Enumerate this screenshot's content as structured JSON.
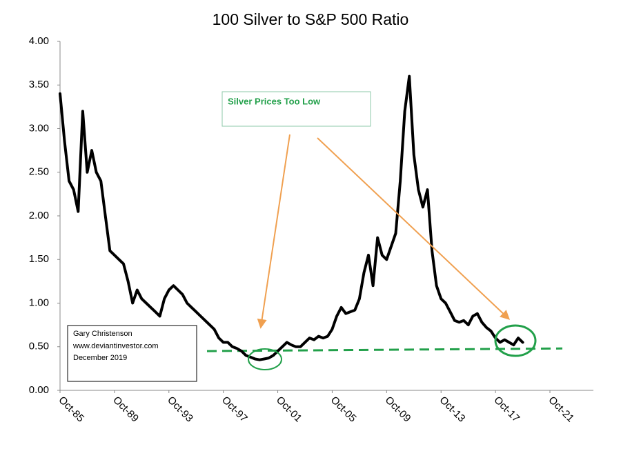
{
  "chart_data": {
    "type": "line",
    "title": "100 Silver to S&P 500 Ratio",
    "categories": [
      "Oct-85",
      null,
      null,
      null,
      null,
      null,
      null,
      null,
      null,
      null,
      null,
      null,
      "Oct-89",
      null,
      null,
      null,
      null,
      null,
      null,
      null,
      null,
      null,
      null,
      null,
      "Oct-93",
      null,
      null,
      null,
      null,
      null,
      null,
      null,
      null,
      null,
      null,
      null,
      "Oct-97",
      null,
      null,
      null,
      null,
      null,
      null,
      null,
      null,
      null,
      null,
      null,
      "Oct-01",
      null,
      null,
      null,
      null,
      null,
      null,
      null,
      null,
      null,
      null,
      null,
      "Oct-05",
      null,
      null,
      null,
      null,
      null,
      null,
      null,
      null,
      null,
      null,
      null,
      "Oct-09",
      null,
      null,
      null,
      null,
      null,
      null,
      null,
      null,
      null,
      null,
      null,
      "Oct-13",
      null,
      null,
      null,
      null,
      null,
      null,
      null,
      null,
      null,
      null,
      null,
      "Oct-17",
      null,
      null,
      null,
      null,
      null,
      null,
      null,
      null,
      null,
      null,
      null,
      "Oct-21"
    ],
    "values": [
      3.4,
      2.85,
      2.4,
      2.3,
      2.05,
      3.2,
      2.5,
      2.75,
      2.5,
      2.4,
      2.0,
      1.6,
      1.55,
      1.5,
      1.45,
      1.25,
      1.0,
      1.15,
      1.05,
      1.0,
      0.95,
      0.9,
      0.85,
      1.05,
      1.15,
      1.2,
      1.15,
      1.1,
      1.0,
      0.95,
      0.9,
      0.85,
      0.8,
      0.75,
      0.7,
      0.6,
      0.55,
      0.55,
      0.5,
      0.48,
      0.45,
      0.4,
      0.38,
      0.36,
      0.35,
      0.36,
      0.37,
      0.4,
      0.45,
      0.5,
      0.55,
      0.52,
      0.5,
      0.5,
      0.55,
      0.6,
      0.58,
      0.62,
      0.6,
      0.62,
      0.7,
      0.85,
      0.95,
      0.88,
      0.9,
      0.92,
      1.05,
      1.35,
      1.55,
      1.2,
      1.75,
      1.55,
      1.5,
      1.65,
      1.8,
      2.4,
      3.2,
      3.6,
      2.7,
      2.3,
      2.1,
      2.3,
      1.6,
      1.2,
      1.05,
      1.0,
      0.9,
      0.8,
      0.78,
      0.8,
      0.75,
      0.85,
      0.88,
      0.78,
      0.72,
      0.68,
      0.6,
      0.55,
      0.58,
      0.55,
      0.52,
      0.6,
      0.55,
      null,
      null,
      null,
      null,
      null,
      null
    ],
    "color": "#000000",
    "ylim": [
      0,
      4
    ],
    "yticks": [
      {
        "value": 0,
        "label": "0.00"
      },
      {
        "value": 0.5,
        "label": "0.50"
      },
      {
        "value": 1,
        "label": "1.00"
      },
      {
        "value": 1.5,
        "label": "1.50"
      },
      {
        "value": 2,
        "label": "2.00"
      },
      {
        "value": 2.5,
        "label": "2.50"
      },
      {
        "value": 3,
        "label": "3.00"
      },
      {
        "value": 3.5,
        "label": "3.50"
      },
      {
        "value": 4,
        "label": "4.00"
      }
    ],
    "grid": false,
    "reference_line": {
      "start": 0.45,
      "end": 0.48,
      "color": "#22a04a"
    },
    "annotations": {
      "callout": "Silver Prices Too Low",
      "credit": [
        "Gary Christenson",
        "www.deviantinvestor.com",
        "December 2019"
      ]
    }
  }
}
